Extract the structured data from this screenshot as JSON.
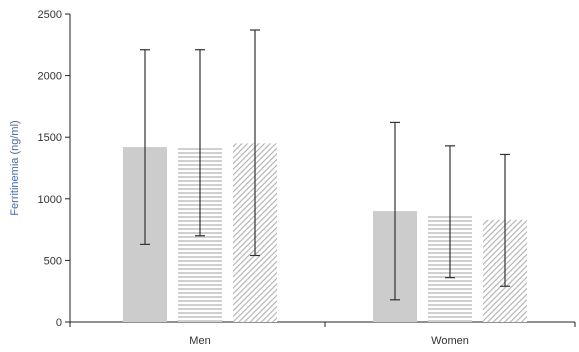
{
  "chart_data": {
    "type": "bar",
    "title": "",
    "xlabel": "",
    "ylabel": "Ferritinemia (ng/ml)",
    "categories": [
      "Men",
      "Women"
    ],
    "ylim": [
      0,
      2500
    ],
    "yticks": [
      "0",
      "500",
      "1000",
      "1500",
      "2000",
      "2500"
    ],
    "grid": false,
    "legend": "none",
    "series": [
      {
        "pattern": "solid",
        "color": "#cccccc",
        "values": [
          1420,
          900
        ],
        "error_low": [
          630,
          180
        ],
        "error_high": [
          2210,
          1620
        ]
      },
      {
        "pattern": "horizontal-lines",
        "color": "#bfbfbf",
        "values": [
          1420,
          870
        ],
        "error_low": [
          700,
          360
        ],
        "error_high": [
          2210,
          1430
        ]
      },
      {
        "pattern": "diagonal-hatch",
        "color": "#aaaaaa",
        "values": [
          1450,
          830
        ],
        "error_low": [
          540,
          290
        ],
        "error_high": [
          2370,
          1360
        ]
      }
    ]
  }
}
